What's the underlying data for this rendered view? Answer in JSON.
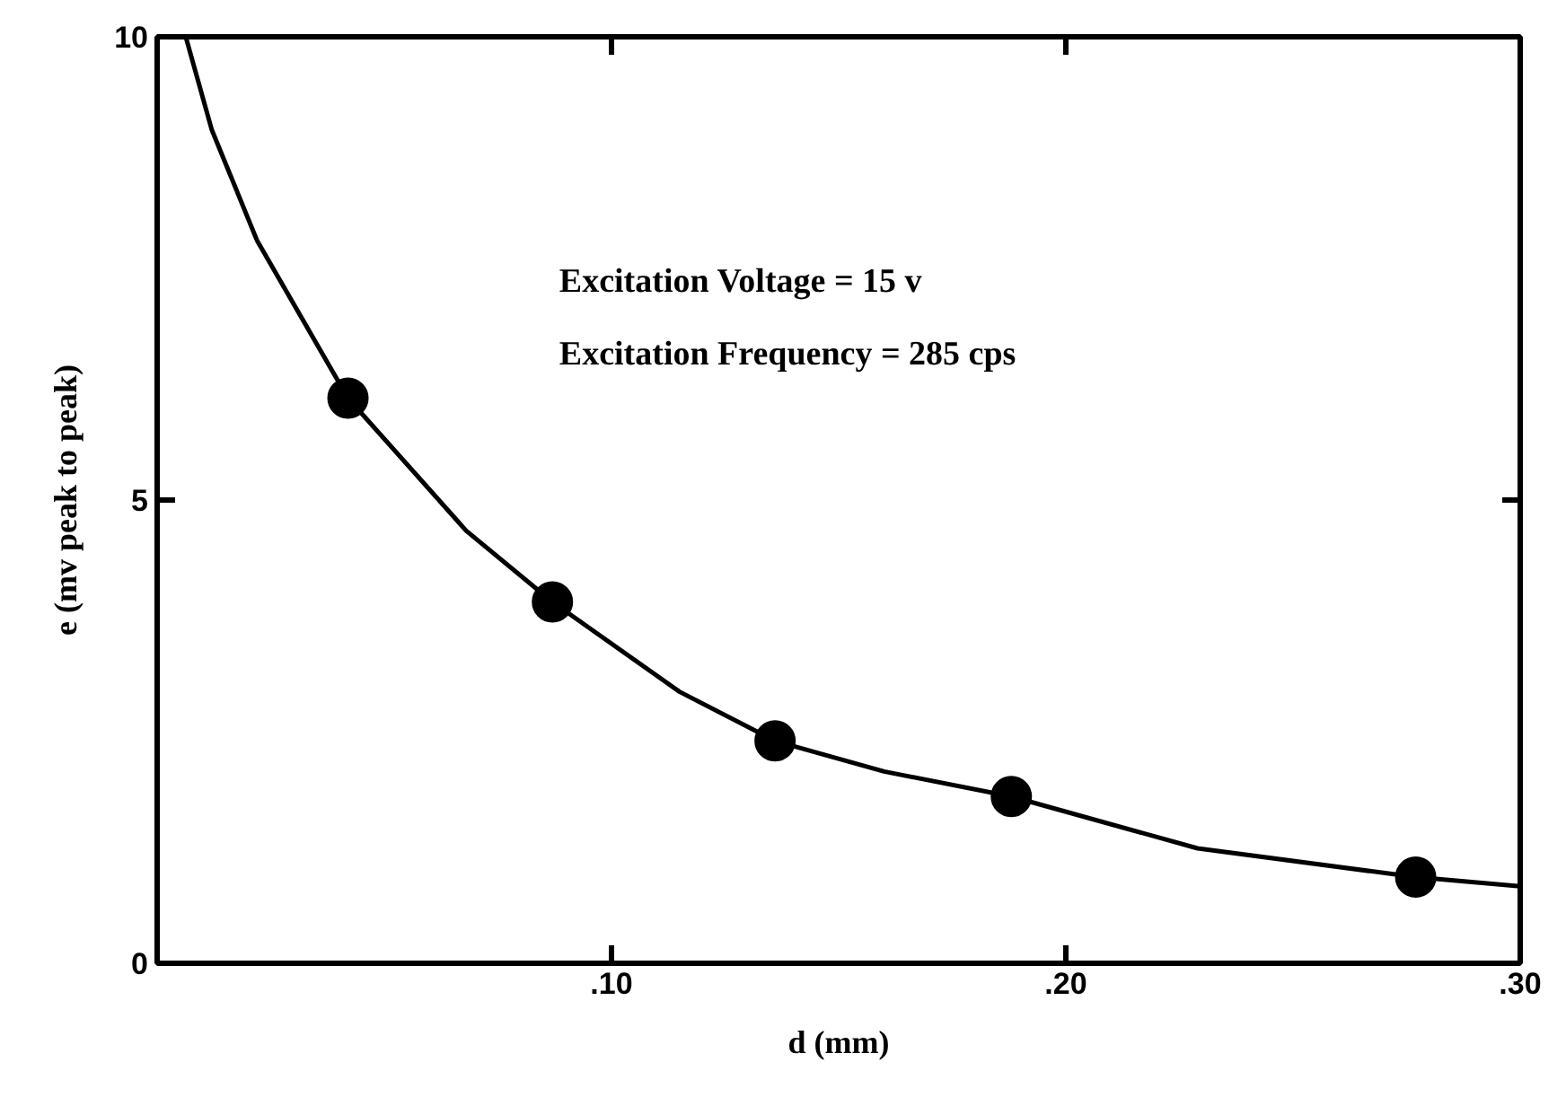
{
  "chart_data": {
    "type": "scatter",
    "xlabel": "d (mm)",
    "ylabel": "e (mv peak to peak)",
    "annotations": [
      "Excitation Voltage = 15 v",
      "Excitation Frequency = 285 cps"
    ],
    "xlim": [
      0,
      0.3
    ],
    "ylim": [
      0,
      10
    ],
    "xticks": [
      {
        "value": 0.1,
        "label": ".10"
      },
      {
        "value": 0.2,
        "label": ".20"
      },
      {
        "value": 0.3,
        "label": ".30"
      }
    ],
    "yticks": [
      0,
      5,
      10
    ],
    "grid": false,
    "marker": "circle",
    "series": [
      {
        "color": "#000000",
        "x": [
          0.042,
          0.087,
          0.136,
          0.188,
          0.277
        ],
        "values": [
          6.1,
          3.9,
          2.4,
          1.8,
          0.93
        ]
      },
      {
        "type": "line",
        "color": "#000000",
        "marker": "none",
        "line_style": "solid",
        "x": [
          0.0063,
          0.012,
          0.022,
          0.042,
          0.068,
          0.087,
          0.115,
          0.136,
          0.16,
          0.188,
          0.229,
          0.277,
          0.3
        ],
        "values": [
          10,
          9.0,
          7.8,
          6.1,
          4.67,
          3.9,
          2.93,
          2.4,
          2.07,
          1.8,
          1.24,
          0.93,
          0.83
        ]
      }
    ]
  }
}
